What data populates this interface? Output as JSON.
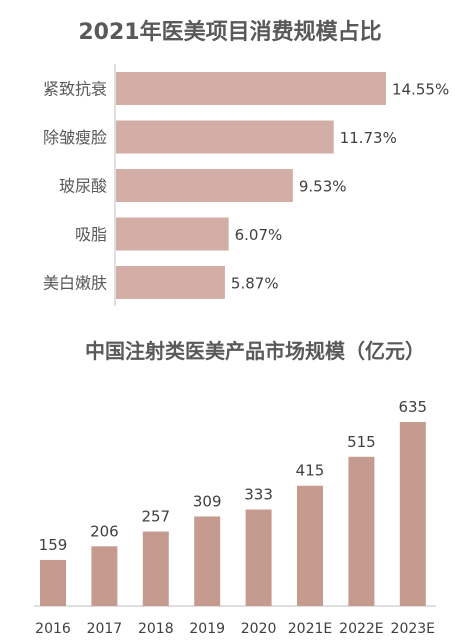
{
  "colors": {
    "bar1": "#d3aea6",
    "bar2": "#c49b8e",
    "axis": "#bfbfbf"
  },
  "chart_data": [
    {
      "type": "bar",
      "orientation": "horizontal",
      "title": "2021年医美项目消费规模占比",
      "categories": [
        "紧致抗衰",
        "除皱瘦脸",
        "玻尿酸",
        "吸脂",
        "美白嫩肤"
      ],
      "values": [
        14.55,
        11.73,
        9.53,
        6.07,
        5.87
      ],
      "data_labels": [
        "14.55%",
        "11.73%",
        "9.53%",
        "6.07%",
        "5.87%"
      ],
      "unit": "%",
      "xlim": [
        0,
        14.55
      ],
      "grid": false
    },
    {
      "type": "bar",
      "orientation": "vertical",
      "title": "中国注射类医美产品市场规模（亿元）",
      "categories": [
        "2016",
        "2017",
        "2018",
        "2019",
        "2020",
        "2021E",
        "2022E",
        "2023E"
      ],
      "values": [
        159,
        206,
        257,
        309,
        333,
        415,
        515,
        635
      ],
      "ylim": [
        0,
        635
      ],
      "grid": false
    }
  ]
}
